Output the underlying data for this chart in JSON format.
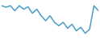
{
  "values": [
    6.5,
    6.2,
    6.5,
    5.5,
    6.5,
    5.8,
    6.3,
    5.0,
    5.8,
    4.5,
    3.5,
    4.5,
    3.2,
    2.5,
    3.2,
    2.0,
    2.8,
    1.5,
    2.2,
    1.0,
    1.8,
    6.5,
    5.5
  ],
  "line_color": "#4a9dc9",
  "bg_color": "#ffffff",
  "linewidth": 1.1
}
